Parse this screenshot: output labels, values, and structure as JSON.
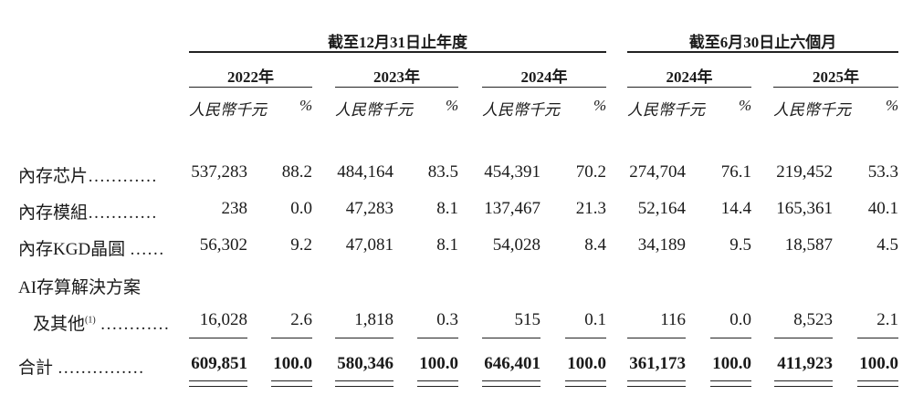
{
  "header": {
    "group_annual": "截至12月31日止年度",
    "group_interim": "截至6月30日止六個月",
    "years": [
      "2022年",
      "2023年",
      "2024年",
      "2024年",
      "2025年"
    ],
    "unit_amount": "人民幣千元",
    "unit_percent": "%"
  },
  "rows": [
    {
      "label": "內存芯片…………",
      "values": [
        "537,283",
        "88.2",
        "484,164",
        "83.5",
        "454,391",
        "70.2",
        "274,704",
        "76.1",
        "219,452",
        "53.3"
      ]
    },
    {
      "label": "內存模組…………",
      "values": [
        "238",
        "0.0",
        "47,283",
        "8.1",
        "137,467",
        "21.3",
        "52,164",
        "14.4",
        "165,361",
        "40.1"
      ]
    },
    {
      "label": "內存KGD晶圓 ……",
      "values": [
        "56,302",
        "9.2",
        "47,081",
        "8.1",
        "54,028",
        "8.4",
        "34,189",
        "9.5",
        "18,587",
        "4.5"
      ]
    },
    {
      "label": "AI存算解決方案",
      "label2": "及其他",
      "footnote": "(1)",
      "dots": "…………",
      "values": [
        "16,028",
        "2.6",
        "1,818",
        "0.3",
        "515",
        "0.1",
        "116",
        "0.0",
        "8,523",
        "2.1"
      ]
    },
    {
      "label": "合計 ……………",
      "values": [
        "609,851",
        "100.0",
        "580,346",
        "100.0",
        "646,401",
        "100.0",
        "361,173",
        "100.0",
        "411,923",
        "100.0"
      ]
    }
  ]
}
